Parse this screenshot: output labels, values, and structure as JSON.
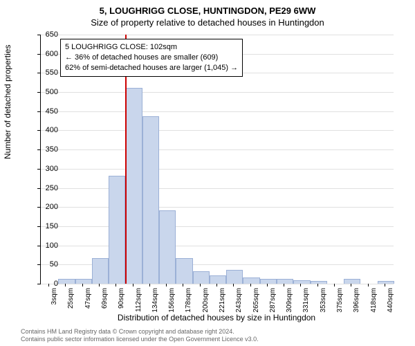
{
  "title": "5, LOUGHRIGG CLOSE, HUNTINGDON, PE29 6WW",
  "subtitle": "Size of property relative to detached houses in Huntingdon",
  "ylabel": "Number of detached properties",
  "xlabel": "Distribution of detached houses by size in Huntingdon",
  "chart": {
    "type": "histogram",
    "ylim": [
      0,
      650
    ],
    "ytick_step": 50,
    "bar_fill": "#c9d6ec",
    "bar_stroke": "#9bb0d6",
    "grid_color": "#e0e0e0",
    "background_color": "#ffffff",
    "marker_color": "#cc0000",
    "marker_value": 102,
    "x_categories": [
      "3sqm",
      "25sqm",
      "47sqm",
      "69sqm",
      "90sqm",
      "112sqm",
      "134sqm",
      "156sqm",
      "178sqm",
      "200sqm",
      "221sqm",
      "243sqm",
      "265sqm",
      "287sqm",
      "309sqm",
      "331sqm",
      "353sqm",
      "375sqm",
      "396sqm",
      "418sqm",
      "440sqm"
    ],
    "bar_values": [
      0,
      10,
      10,
      65,
      280,
      510,
      435,
      190,
      65,
      30,
      20,
      35,
      15,
      10,
      10,
      8,
      5,
      0,
      10,
      0,
      5
    ]
  },
  "info_box": {
    "line1": "5 LOUGHRIGG CLOSE: 102sqm",
    "line2": "← 36% of detached houses are smaller (609)",
    "line3": "62% of semi-detached houses are larger (1,045) →"
  },
  "footer": {
    "line1": "Contains HM Land Registry data © Crown copyright and database right 2024.",
    "line2": "Contains public sector information licensed under the Open Government Licence v3.0."
  }
}
